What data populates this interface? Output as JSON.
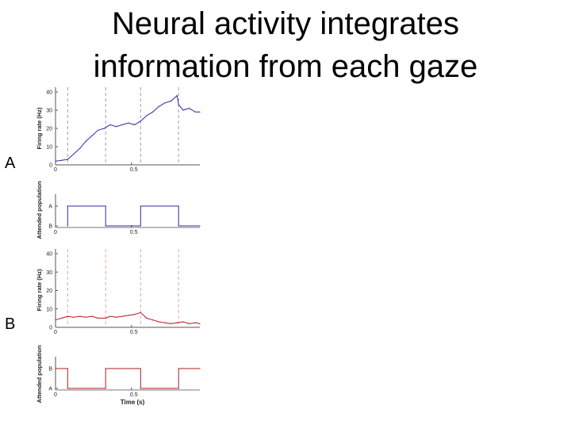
{
  "slide": {
    "title_line1": "Neural activity integrates",
    "title_line2": "information from each gaze",
    "label_a": "A",
    "label_b": "B"
  },
  "chart_data": [
    {
      "id": "A-rate",
      "type": "line",
      "ylabel": "Firing rate (Hz)",
      "xlim": [
        0,
        0.95
      ],
      "ylim": [
        0,
        40
      ],
      "yticks": [
        0,
        10,
        20,
        30,
        40
      ],
      "xticks": [
        {
          "v": 0,
          "label": "0"
        },
        {
          "v": 0.5,
          "label": "0.5"
        }
      ],
      "gaze_lines": [
        0.08,
        0.33,
        0.56,
        0.81
      ],
      "color": "#2b2f9e",
      "gaze_color": "#9a9ac8",
      "x": [
        0,
        0.04,
        0.08,
        0.12,
        0.16,
        0.2,
        0.24,
        0.28,
        0.32,
        0.36,
        0.4,
        0.44,
        0.48,
        0.52,
        0.56,
        0.6,
        0.64,
        0.68,
        0.72,
        0.76,
        0.8,
        0.81,
        0.84,
        0.88,
        0.92,
        0.95
      ],
      "y": [
        2,
        2.5,
        3,
        6,
        9,
        13,
        16,
        19,
        20,
        22,
        21,
        22,
        23,
        22,
        24,
        27,
        29,
        32,
        34,
        35,
        38,
        33,
        30,
        31,
        29,
        29
      ]
    },
    {
      "id": "A-attended",
      "type": "line",
      "ylabel": "Attended population",
      "xlim": [
        0,
        0.95
      ],
      "ylim": [
        0,
        1
      ],
      "ytick_labels": [
        {
          "v": 1,
          "label": "A"
        },
        {
          "v": 0,
          "label": "B"
        }
      ],
      "xticks": [
        {
          "v": 0,
          "label": "0"
        },
        {
          "v": 0.5,
          "label": "0.5"
        }
      ],
      "color": "#2b2f9e",
      "x": [
        0.08,
        0.08,
        0.33,
        0.33,
        0.56,
        0.56,
        0.81,
        0.81,
        0.95
      ],
      "y": [
        0,
        1,
        1,
        0,
        0,
        1,
        1,
        0,
        0
      ]
    },
    {
      "id": "B-rate",
      "type": "line",
      "ylabel": "Firing rate (Hz)",
      "xlim": [
        0,
        0.95
      ],
      "ylim": [
        0,
        40
      ],
      "yticks": [
        0,
        10,
        20,
        30,
        40
      ],
      "xticks": [
        {
          "v": 0,
          "label": "0"
        },
        {
          "v": 0.5,
          "label": "0.5"
        }
      ],
      "gaze_lines": [
        0.08,
        0.33,
        0.56,
        0.81
      ],
      "color": "#b31b1b",
      "gaze_color": "#e4a3a3",
      "x": [
        0,
        0.04,
        0.08,
        0.12,
        0.16,
        0.2,
        0.24,
        0.28,
        0.33,
        0.36,
        0.4,
        0.44,
        0.48,
        0.52,
        0.56,
        0.6,
        0.64,
        0.68,
        0.72,
        0.76,
        0.8,
        0.84,
        0.88,
        0.92,
        0.95
      ],
      "y": [
        4,
        5,
        6,
        5.5,
        6,
        5.5,
        6,
        5,
        5,
        6,
        5.5,
        6,
        6.5,
        7,
        8,
        5,
        4,
        3,
        2.5,
        2,
        2.5,
        3,
        2,
        2.5,
        2
      ]
    },
    {
      "id": "B-attended",
      "type": "line",
      "ylabel": "Attended population",
      "xlabel": "Time (s)",
      "xlim": [
        0,
        0.95
      ],
      "ylim": [
        0,
        1
      ],
      "ytick_labels": [
        {
          "v": 1,
          "label": "B"
        },
        {
          "v": 0,
          "label": "A"
        }
      ],
      "xticks": [
        {
          "v": 0,
          "label": "0"
        },
        {
          "v": 0.5,
          "label": "0.5"
        }
      ],
      "color": "#b31b1b",
      "x": [
        0,
        0.08,
        0.08,
        0.33,
        0.33,
        0.56,
        0.56,
        0.81,
        0.81,
        0.95
      ],
      "y": [
        1,
        1,
        0,
        0,
        1,
        1,
        0,
        0,
        1,
        1
      ]
    }
  ]
}
